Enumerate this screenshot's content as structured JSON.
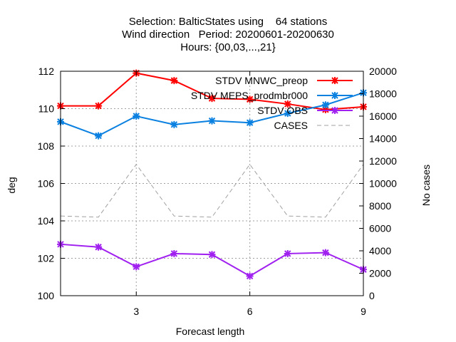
{
  "chart_data": {
    "type": "line",
    "title_lines": [
      "Selection: BalticStates using    64 stations",
      "Wind direction   Period: 20200601-20200630",
      "Hours: {00,03,...,21}"
    ],
    "xlabel": "Forecast length",
    "ylabel": "deg",
    "y2label": "No cases",
    "xlim": [
      1,
      9
    ],
    "ylim": [
      100,
      112
    ],
    "y2lim": [
      0,
      20000
    ],
    "x_ticks": [
      3,
      6,
      9
    ],
    "y_ticks": [
      100,
      102,
      104,
      106,
      108,
      110,
      112
    ],
    "y2_ticks": [
      0,
      2000,
      4000,
      6000,
      8000,
      10000,
      12000,
      14000,
      16000,
      18000,
      20000
    ],
    "grid": true,
    "legend_position": "top-right",
    "x": [
      1,
      2,
      3,
      4,
      5,
      6,
      7,
      8,
      9
    ],
    "series": [
      {
        "name": "STDV MNWC_preop",
        "color": "#ff0000",
        "axis": "y",
        "values": [
          110.15,
          110.15,
          111.9,
          111.5,
          110.55,
          110.5,
          110.25,
          109.95,
          110.1
        ]
      },
      {
        "name": "STDV MEPS_prodmbr000",
        "color": "#0a80e0",
        "axis": "y",
        "values": [
          109.3,
          108.55,
          109.6,
          109.15,
          109.35,
          109.25,
          109.75,
          110.2,
          110.85
        ]
      },
      {
        "name": "STDV OBS",
        "color": "#a020f0",
        "axis": "y",
        "values": [
          102.75,
          102.6,
          101.55,
          102.25,
          102.2,
          101.05,
          102.25,
          102.3,
          101.4
        ]
      },
      {
        "name": "CASES",
        "color": "#a0a0a0",
        "axis": "y2",
        "dashed": true,
        "values": [
          7100,
          7000,
          11700,
          7100,
          7000,
          11700,
          7100,
          7000,
          11700
        ]
      }
    ]
  }
}
